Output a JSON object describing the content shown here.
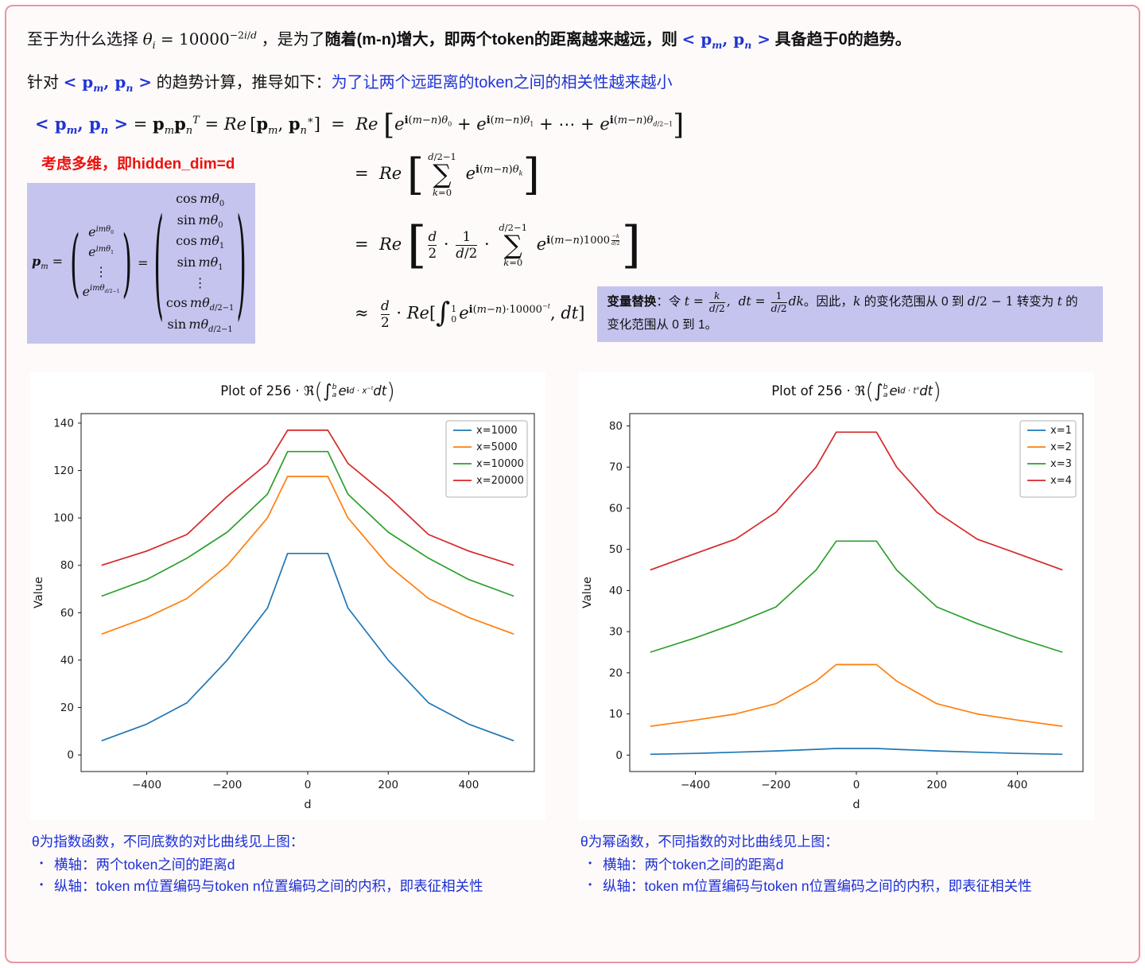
{
  "colors": {
    "card_border": "#ee94a2",
    "card_background": "#fefafa",
    "highlight_purple": "#c5c4ef",
    "text_blue": "#1f35d4",
    "text_red": "#ea120e",
    "footnote_blue": "#1d2fd6"
  },
  "intro": {
    "line1_html": "至于为什么选择 <span class='math'><i>θ<sub>i</sub></i> = 10000<sup>−2<i>i</i>/<i>d</i></sup></span> ，是为了<b>随着(m-n)增大，即两个token的距离越来越远，则</b> <span class='math cblue'><b>&lt; p<sub><i>m</i></sub>, p<sub><i>n</i></sub> &gt;</b></span> <b>具备趋于0的趋势。</b>",
    "line2_html": "针对 <span class='math cblue'><b>&lt; p<sub><i>m</i></sub>, p<sub><i>n</i></sub> &gt;</b></span> 的趋势计算，推导如下：<span class='cblue'>为了让两个远距离的token之间的相关性越来越小</span>"
  },
  "derivation": {
    "eq1_html": "<span class='cblue'><b>&lt; p<sub><i>m</i></sub>, p<sub><i>n</i></sub> &gt;</b></span> = <b>p</b><sub><i>m</i></sub><b>p</b><sub><i>n</i></sub><sup><i>T</i></sup> = <i>Re</i>&thinsp;[<b>p</b><sub><i>m</i></sub>, <b>p</b><sub><i>n</i></sub><sup>∗</sup>] &nbsp;=&nbsp; <i>Re</i> <span class='bb'>[</span><i>e</i><sup><b>i</b>(<i>m</i>−<i>n</i>)<i>θ</i><sub>0</sub></sup> + <i>e</i><sup><b>i</b>(<i>m</i>−<i>n</i>)<i>θ</i><sub>1</sub></sup> + ⋯ + <i>e</i><sup><b>i</b>(<i>m</i>−<i>n</i>)<i>θ</i><sub><i>d</i>/2−1</sub></sup><span class='bb'>]</span>",
    "red_note": "考虑多维，即hidden_dim=d",
    "pm_matrix_html": "<span style='margin:0 6px 0 2px'><b><i>p</i></b><sub><i>m</i></sub> =</span><span class='mat'><span class='sp' style='--s:2.9'>(</span><span class='mcol'><span><i>e</i><sup><i>imθ</i><sub>0</sub></sup></span><span><i>e</i><sup><i>imθ</i><sub>1</sub></sup></span><span>⋮</span><span><i>e</i><sup><i>imθ</i><sub><i>d</i>/2−1</sub></sup></span></span><span class='sp' style='--s:2.9'>)</span></span><span style='margin:0 4px'>=</span><span class='mat'><span class='sp' style='--s:4.7'>(</span><span class='mcol'><span>cos&thinsp;<i>mθ</i><sub>0</sub></span><span>sin&thinsp;<i>mθ</i><sub>0</sub></span><span>cos&thinsp;<i>mθ</i><sub>1</sub></span><span>sin&thinsp;<i>mθ</i><sub>1</sub></span><span>⋮</span><span>cos&thinsp;<i>mθ</i><sub><i>d</i>/2−1</sub></span><span>sin&thinsp;<i>mθ</i><sub><i>d</i>/2−1</sub></span></span><span class='sp' style='--s:4.7'>)</span></span>",
    "eq2_html": "=&nbsp;&nbsp;<i>Re</i> <span class='bbt'>[</span><span class='sum'><span class='slim'><i>d</i>/2−1</span><span class='sop'>∑</span><span class='slim'><i>k</i>=0</span></span> <i>e</i><sup><b>i</b>(<i>m</i>−<i>n</i>)<i>θ</i><sub><i>k</i></sub></sup><span class='bbt'>]</span>",
    "eq3_html": "=&nbsp;&nbsp;<i>Re</i> <span class='bbx'>[</span><span class='frac'><span class='num'><i>d</i></span><span class='den'>2</span></span> · <span class='frac'><span class='num'>1</span><span class='den'><i>d</i>/2</span></span> · <span class='sum'><span class='slim'><i>d</i>/2−1</span><span class='sop'>∑</span><span class='slim'><i>k</i>=0</span></span> <i>e</i><sup><b>i</b>(<i>m</i>−<i>n</i>)1000<span class='tfr'><span class='frac'><span class='num'>−<i>k</i></span><span class='den'><i>d</i>/2</span></span></span></sup><span class='bbx'>]</span>",
    "eq4_html": "≈&nbsp;&nbsp;<span class='frac'><span class='num'><i>d</i></span><span class='den'>2</span></span> · <i>Re</i>[<span class='intg'>∫</span><span class='ilims'><span>1</span><span>0</span></span><i>e</i><sup><b>i</b>(<i>m</i>−<i>n</i>)·10000<sup>−<i>t</i></sup></sup>, <i>dt</i>]",
    "subst_html": "<b>变量替换</b>：令 <span class='math'><i>t</i> = <span class='frac'><span class='num'><i>k</i></span><span class='den'><i>d</i>/2</span></span>,&nbsp; <i>dt</i> = <span class='frac'><span class='num'>1</span><span class='den'><i>d</i>/2</span></span><i>dk</i></span>。因此，<span class='math'><i>k</i></span> 的变化范围从 0 到 <span class='math'><i>d</i>/2 − 1</span> 转变为 <span class='math'><i>t</i></span> 的<br>变化范围从 0 到 1。"
  },
  "chart_data": [
    {
      "type": "line",
      "title": "Plot of 256·ℜ(∫_a^b e^{id·x^{−t}} dt)",
      "title_html": "Plot of 256 · ℜ<span class='tp'>(</span><span class='ti'>∫</span><span class='tl'><span>b</span><span>a</span></span><i>e</i><sup><b>i</b><i>d</i> · <i>x</i><sup>−<i>t</i></sup></sup> <i>dt</i><span class='tp'>)</span>",
      "xlabel": "d",
      "ylabel": "Value",
      "xlim": [
        -563,
        563
      ],
      "ylim": [
        -7,
        144
      ],
      "xticks": [
        -400,
        -200,
        0,
        200,
        400
      ],
      "yticks": [
        0,
        20,
        40,
        60,
        80,
        100,
        120,
        140
      ],
      "grid": false,
      "legend_position": "top-right",
      "x": [
        -512,
        -400,
        -300,
        -200,
        -100,
        -50,
        50,
        100,
        200,
        300,
        400,
        512
      ],
      "series": [
        {
          "name": "x=1000",
          "color": "#1f77b4",
          "values": [
            6,
            13,
            22,
            40,
            62,
            85,
            85,
            62,
            40,
            22,
            13,
            6
          ]
        },
        {
          "name": "x=5000",
          "color": "#ff7f0e",
          "values": [
            51,
            58,
            66,
            80,
            100,
            117.5,
            117.5,
            100,
            80,
            66,
            58,
            51
          ]
        },
        {
          "name": "x=10000",
          "color": "#2ca02c",
          "values": [
            67,
            74,
            83,
            94,
            110,
            128,
            128,
            110,
            94,
            83,
            74,
            67
          ]
        },
        {
          "name": "x=20000",
          "color": "#d62728",
          "values": [
            80,
            86,
            93,
            109,
            123,
            137,
            137,
            123,
            109,
            93,
            86,
            80
          ]
        }
      ]
    },
    {
      "type": "line",
      "title": "Plot of 256·ℜ(∫_a^b e^{id·t^{x}} dt)",
      "title_html": "Plot of 256 · ℜ<span class='tp'>(</span><span class='ti'>∫</span><span class='tl'><span>b</span><span>a</span></span><i>e</i><sup><b>i</b><i>d</i> · <i>t</i><sup><i>x</i></sup></sup> <i>dt</i><span class='tp'>)</span>",
      "xlabel": "d",
      "ylabel": "Value",
      "xlim": [
        -563,
        563
      ],
      "ylim": [
        -4,
        83
      ],
      "xticks": [
        -400,
        -200,
        0,
        200,
        400
      ],
      "yticks": [
        0,
        10,
        20,
        30,
        40,
        50,
        60,
        70,
        80
      ],
      "grid": false,
      "legend_position": "top-right",
      "x": [
        -512,
        -400,
        -300,
        -200,
        -100,
        -50,
        50,
        100,
        200,
        300,
        400,
        512
      ],
      "series": [
        {
          "name": "x=1",
          "color": "#1f77b4",
          "values": [
            0.2,
            0.4,
            0.7,
            1.0,
            1.4,
            1.6,
            1.6,
            1.4,
            1.0,
            0.7,
            0.4,
            0.2
          ]
        },
        {
          "name": "x=2",
          "color": "#ff7f0e",
          "values": [
            7,
            8.5,
            10,
            12.5,
            18,
            22,
            22,
            18,
            12.5,
            10,
            8.5,
            7
          ]
        },
        {
          "name": "x=3",
          "color": "#2ca02c",
          "values": [
            25,
            28.5,
            32,
            36,
            45,
            52,
            52,
            45,
            36,
            32,
            28.5,
            25
          ]
        },
        {
          "name": "x=4",
          "color": "#d62728",
          "values": [
            45,
            49,
            52.5,
            59,
            70,
            78.5,
            78.5,
            70,
            59,
            52.5,
            49,
            45
          ]
        }
      ]
    }
  ],
  "footnotes": [
    {
      "title": "θ为指数函数，不同底数的对比曲线见上图：",
      "bullets": [
        "横轴：两个token之间的距离d",
        "纵轴：token m位置编码与token n位置编码之间的内积，即表征相关性"
      ]
    },
    {
      "title": "θ为幂函数，不同指数的对比曲线见上图：",
      "bullets": [
        "横轴：两个token之间的距离d",
        "纵轴：token m位置编码与token n位置编码之间的内积，即表征相关性"
      ]
    }
  ]
}
